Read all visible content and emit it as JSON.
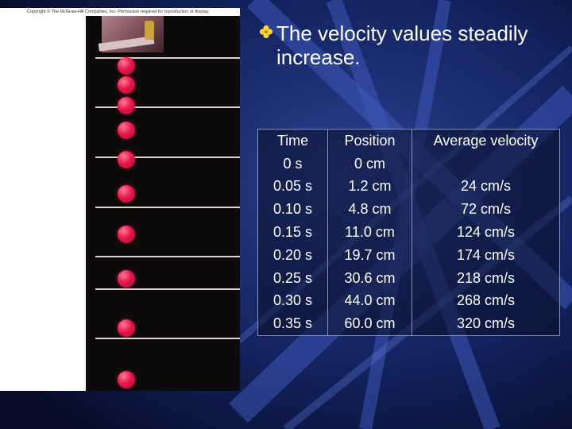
{
  "copyright": "Copyright © The McGraw-Hill Companies, Inc. Permission required for reproduction or display.",
  "bullet": {
    "icon": "diamond-bullet-icon",
    "text": "The velocity values steadily increase."
  },
  "table": {
    "headers": [
      "Time",
      "Position",
      "Average velocity"
    ],
    "rows": [
      [
        "0 s",
        "0 cm",
        ""
      ],
      [
        "0.05 s",
        "1.2 cm",
        "24 cm/s"
      ],
      [
        "0.10 s",
        "4.8 cm",
        "72 cm/s"
      ],
      [
        "0.15 s",
        "11.0 cm",
        "124 cm/s"
      ],
      [
        "0.20 s",
        "19.7 cm",
        "174 cm/s"
      ],
      [
        "0.25 s",
        "30.6 cm",
        "218 cm/s"
      ],
      [
        "0.30 s",
        "44.0 cm",
        "268 cm/s"
      ],
      [
        "0.35 s",
        "60.0 cm",
        "320 cm/s"
      ]
    ]
  },
  "colors": {
    "background": "#0b1640",
    "accent": "#ffd23a",
    "ball": "#e8174a"
  }
}
